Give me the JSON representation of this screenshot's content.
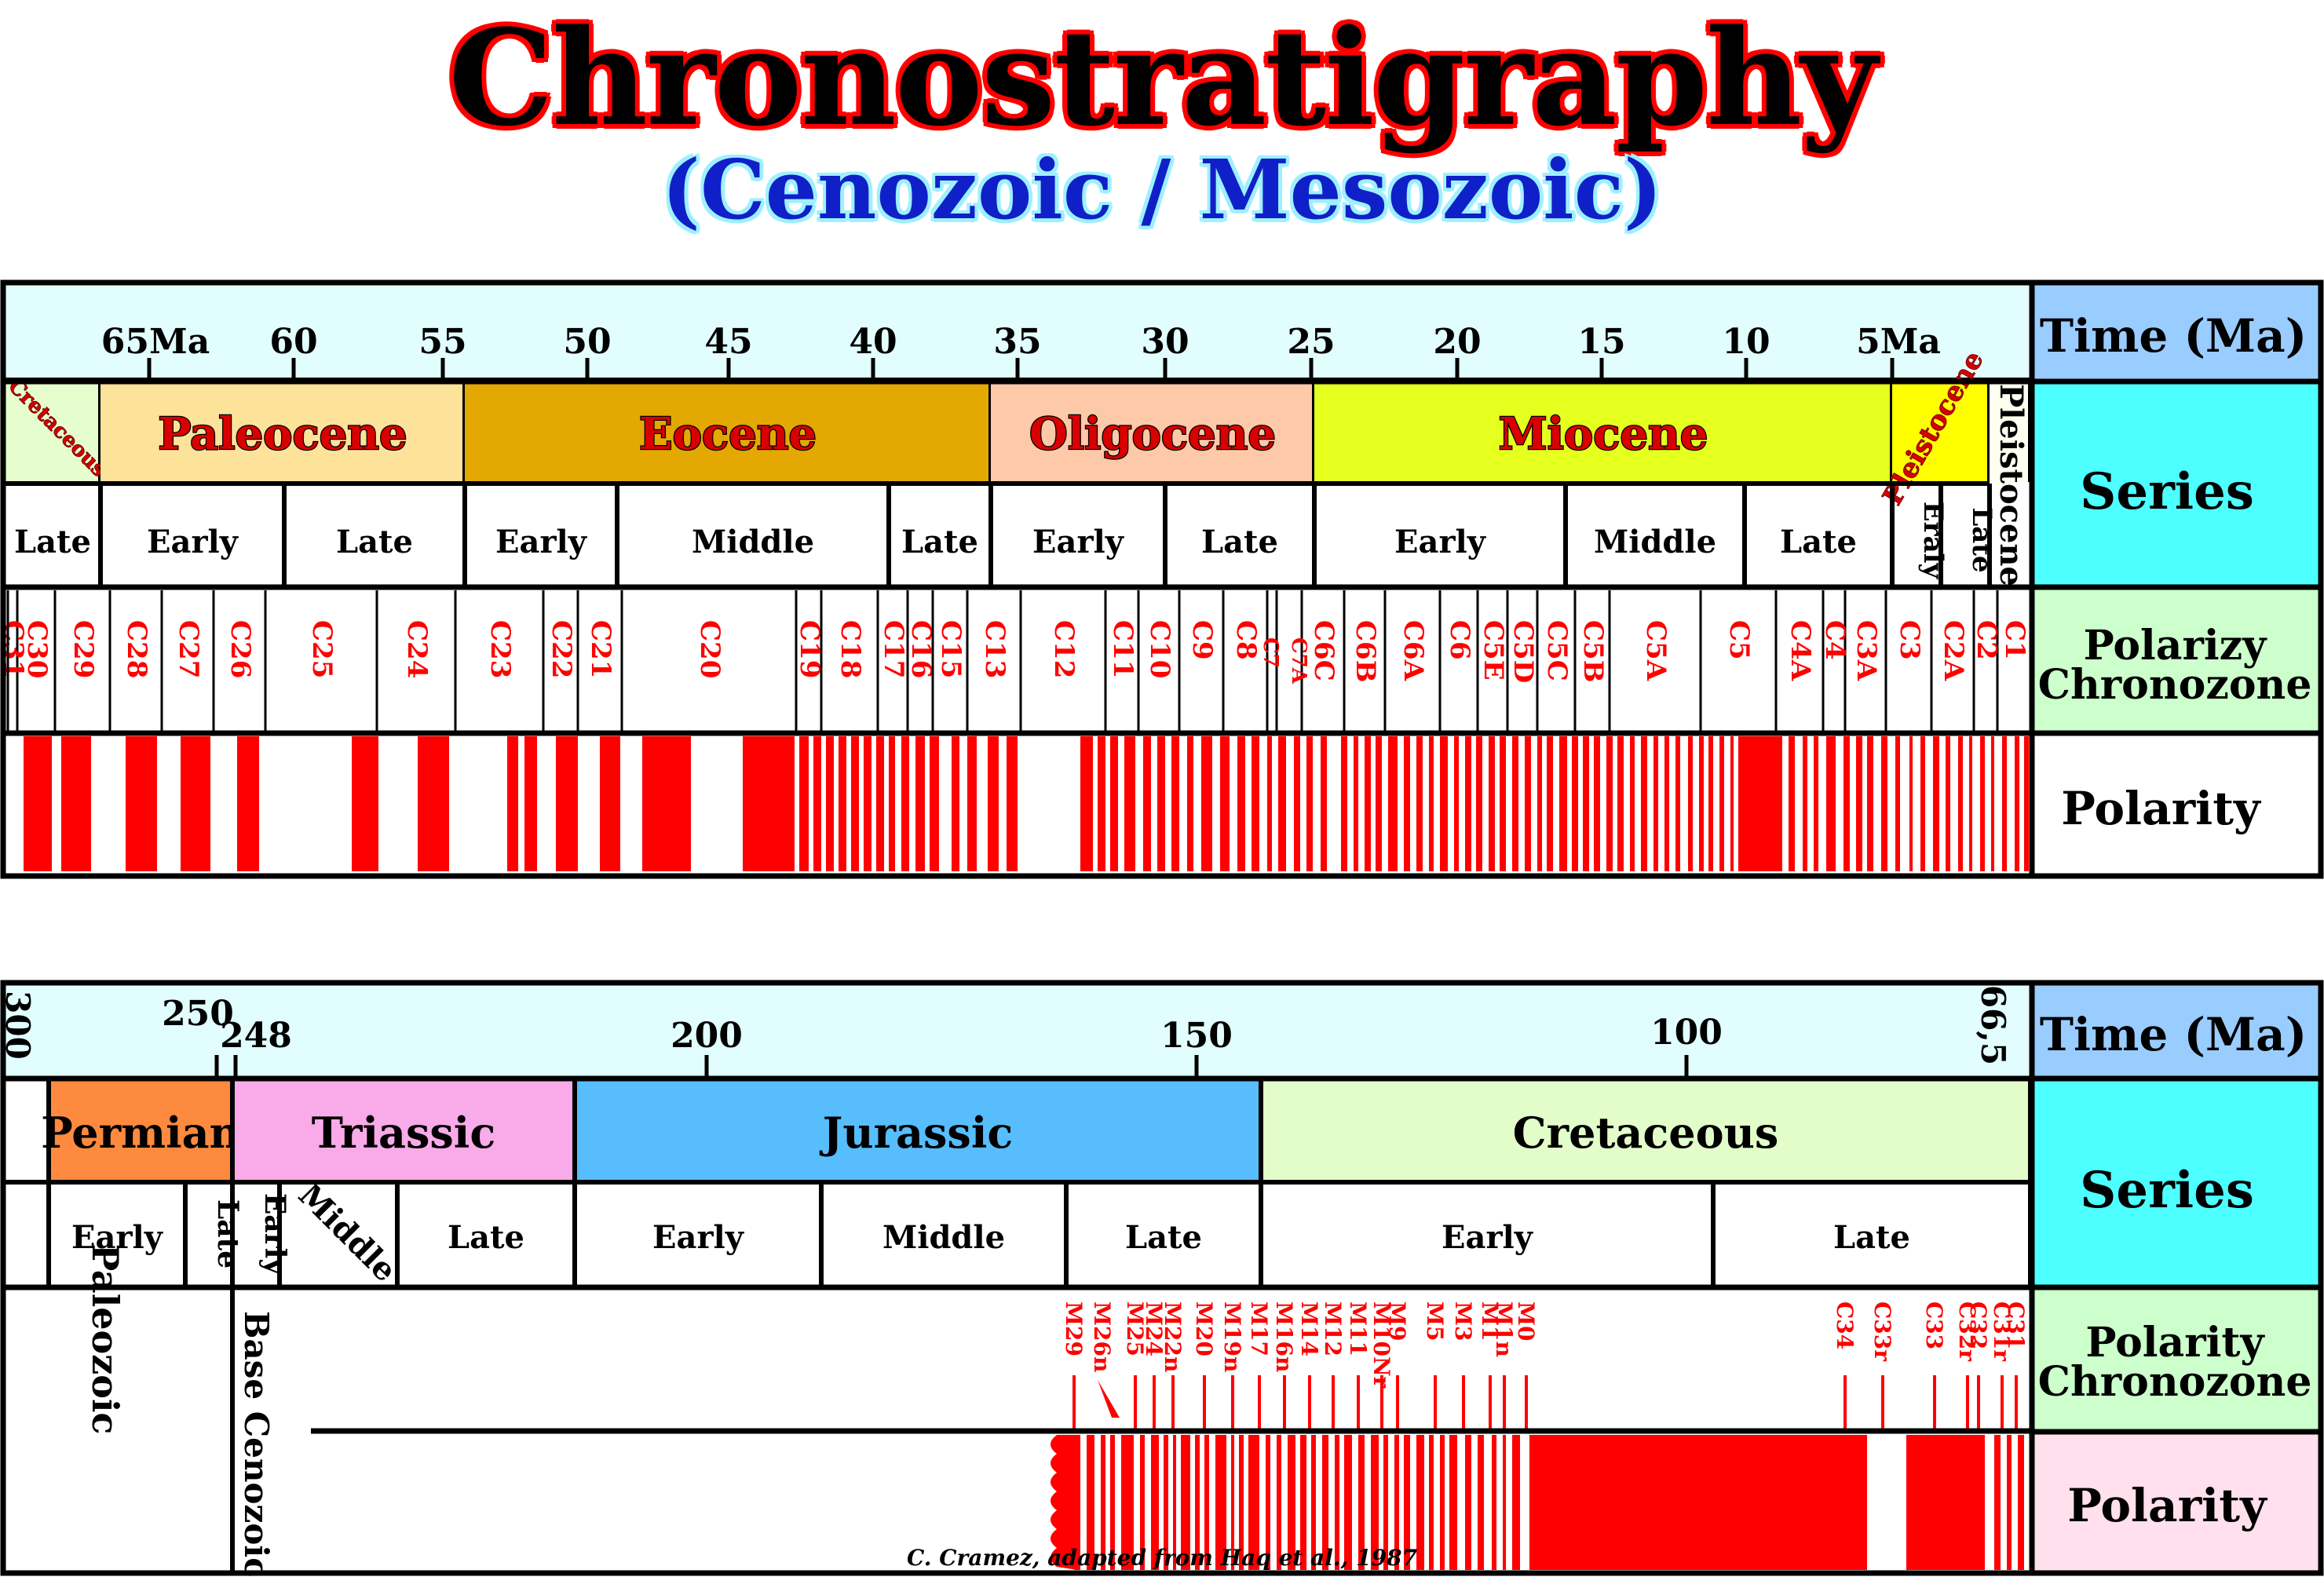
{
  "title": "Chronostratigraphy",
  "subtitle": "(Cenozoic / Mesozoic)",
  "credit": "C. Cramez, adapted from Haq et al., 1987",
  "colors": {
    "red": "#ff0000",
    "time_band": "#e2fdfd",
    "time_label": "#99ccff",
    "series_label": "#4dffff",
    "polarity_chron_label": "#ccffcc",
    "polarity_label_top": "#ffffff",
    "polarity_label_bottom": "#ffe0ec"
  },
  "top_panel": {
    "row_labels": {
      "time": "Time (Ma)",
      "series": "Series",
      "chronozone_1": "Polarizy",
      "chronozone_2": "Chronozone",
      "polarity": "Polarity"
    },
    "time_ticks": [
      "65Ma",
      "60",
      "55",
      "50",
      "45",
      "40",
      "35",
      "30",
      "25",
      "20",
      "15",
      "10",
      "5Ma"
    ],
    "epochs": [
      {
        "name": "Cretaceous",
        "color": "#e6fdcd"
      },
      {
        "name": "Paleocene",
        "color": "#fde29a"
      },
      {
        "name": "Eocene",
        "color": "#e3a902"
      },
      {
        "name": "Oligocene",
        "color": "#fdc9a9"
      },
      {
        "name": "Miocene",
        "color": "#e5ff1e"
      },
      {
        "name": "Pleistocene",
        "color": "#ffff00"
      },
      {
        "name": "Pleistocene",
        "color": "#fffff0"
      }
    ],
    "subdivisions": [
      "Late",
      "Early",
      "Late",
      "Early",
      "Middle",
      "Late",
      "Early",
      "Late",
      "Early",
      "Middle",
      "Late",
      "Eraly",
      "Late"
    ],
    "chrons": [
      "C31",
      "C30",
      "C29",
      "C28",
      "C27",
      "C26",
      "C25",
      "C24",
      "C23",
      "C22",
      "C21",
      "C20",
      "C19",
      "C18",
      "C17",
      "C16",
      "C15",
      "C13",
      "C12",
      "C11",
      "C10",
      "C9",
      "C8",
      "C7",
      "C7A",
      "C6C",
      "C6B",
      "C6A",
      "C6",
      "C5E",
      "C5D",
      "C5C",
      "C5B",
      "C5A",
      "C5",
      "C4A",
      "C4",
      "C3A",
      "C3",
      "C2A",
      "C2",
      "C1"
    ]
  },
  "bottom_panel": {
    "row_labels": {
      "time": "Time (Ma)",
      "series": "Series",
      "chronozone_1": "Polarity",
      "chronozone_2": "Chronozone",
      "polarity": "Polarity"
    },
    "time_ticks": [
      "300",
      "250",
      "248",
      "200",
      "150",
      "100",
      "66,5"
    ],
    "periods": [
      {
        "name": "Permian",
        "color": "#fd8a3e"
      },
      {
        "name": "Triassic",
        "color": "#f8abe8"
      },
      {
        "name": "Jurassic",
        "color": "#57bdfd"
      },
      {
        "name": "Cretaceous",
        "color": "#e2fdca"
      }
    ],
    "subdivisions": [
      "Early",
      "Late",
      "Early",
      "Middle",
      "Late",
      "Early",
      "Middle",
      "Late",
      "Early",
      "Late"
    ],
    "paleozoic": "Paleozoic",
    "base_cenozoic": "Base Cenozoic",
    "chrons": [
      "M29",
      "M26n",
      "M25",
      "M24",
      "M22n",
      "M20",
      "M19n",
      "M17",
      "M16n",
      "M14",
      "M12",
      "M11",
      "M10Nr",
      "M9",
      "M5",
      "M3",
      "M1",
      "M1n",
      "M0",
      "C34",
      "C33r",
      "C33",
      "C32r",
      "C32",
      "C31r",
      "C31"
    ]
  }
}
